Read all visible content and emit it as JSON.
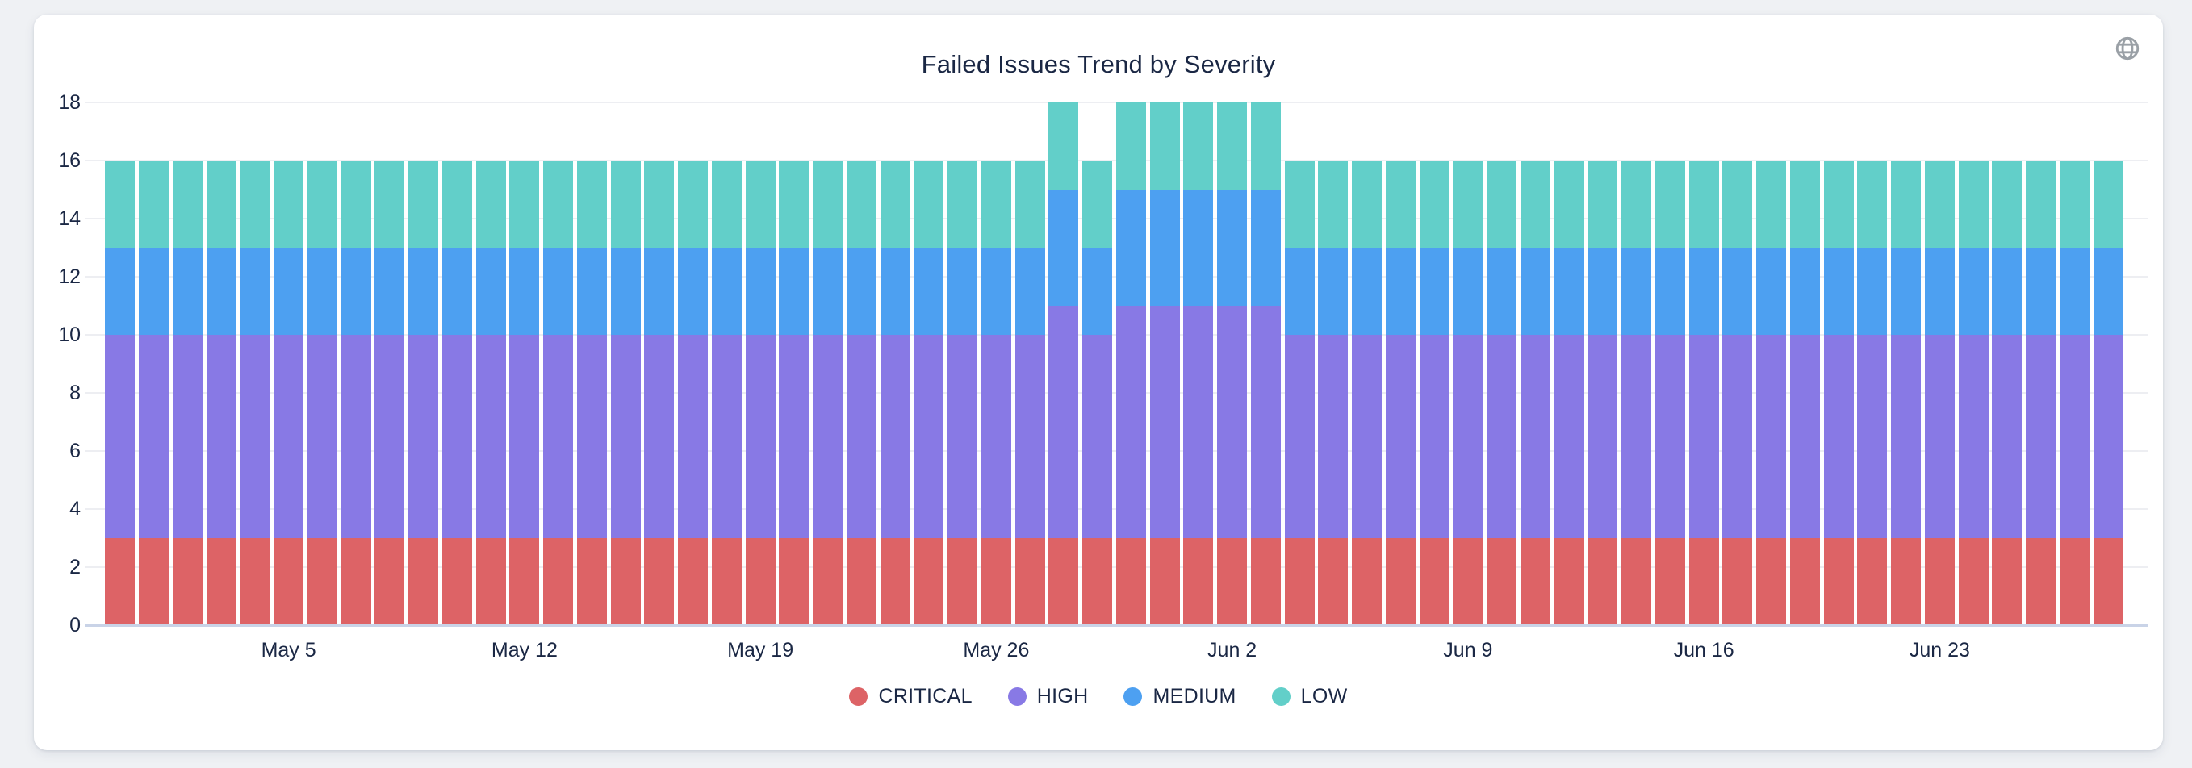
{
  "theme": {
    "page_background": "#EFF1F4",
    "card_background": "#FFFFFF",
    "text_color": "#1A2744",
    "grid_color": "#EDEEF2",
    "axis_line_color": "#C9D3E7",
    "icon_color": "#9AA0A6"
  },
  "header": {
    "globe_icon": "globe"
  },
  "chart_data": {
    "type": "bar",
    "stacked": true,
    "title": "Failed Issues Trend by Severity",
    "grid": true,
    "legend_position": "bottom",
    "ylim": [
      0,
      18
    ],
    "ytick_step": 2,
    "x": [
      "Apr 30",
      "May 1",
      "May 2",
      "May 3",
      "May 4",
      "May 5",
      "May 6",
      "May 7",
      "May 8",
      "May 9",
      "May 10",
      "May 11",
      "May 12",
      "May 13",
      "May 14",
      "May 15",
      "May 16",
      "May 17",
      "May 18",
      "May 19",
      "May 20",
      "May 21",
      "May 22",
      "May 23",
      "May 24",
      "May 25",
      "May 26",
      "May 27",
      "May 28",
      "May 29",
      "May 30",
      "May 31",
      "Jun 1",
      "Jun 2",
      "Jun 3",
      "Jun 4",
      "Jun 5",
      "Jun 6",
      "Jun 7",
      "Jun 8",
      "Jun 9",
      "Jun 10",
      "Jun 11",
      "Jun 12",
      "Jun 13",
      "Jun 14",
      "Jun 15",
      "Jun 16",
      "Jun 17",
      "Jun 18",
      "Jun 19",
      "Jun 20",
      "Jun 21",
      "Jun 22",
      "Jun 23",
      "Jun 24",
      "Jun 25",
      "Jun 26",
      "Jun 27",
      "Jun 28"
    ],
    "tick_labels": [
      "May 5",
      "May 12",
      "May 19",
      "May 26",
      "Jun 2",
      "Jun 9",
      "Jun 16",
      "Jun 23"
    ],
    "tick_indices": [
      5,
      12,
      19,
      26,
      33,
      40,
      47,
      54
    ],
    "series": [
      {
        "name": "CRITICAL",
        "color": "#DD6366",
        "values": [
          3,
          3,
          3,
          3,
          3,
          3,
          3,
          3,
          3,
          3,
          3,
          3,
          3,
          3,
          3,
          3,
          3,
          3,
          3,
          3,
          3,
          3,
          3,
          3,
          3,
          3,
          3,
          3,
          3,
          3,
          3,
          3,
          3,
          3,
          3,
          3,
          3,
          3,
          3,
          3,
          3,
          3,
          3,
          3,
          3,
          3,
          3,
          3,
          3,
          3,
          3,
          3,
          3,
          3,
          3,
          3,
          3,
          3,
          3,
          3
        ]
      },
      {
        "name": "HIGH",
        "color": "#8879E5",
        "values": [
          7,
          7,
          7,
          7,
          7,
          7,
          7,
          7,
          7,
          7,
          7,
          7,
          7,
          7,
          7,
          7,
          7,
          7,
          7,
          7,
          7,
          7,
          7,
          7,
          7,
          7,
          7,
          7,
          8,
          7,
          8,
          8,
          8,
          8,
          8,
          7,
          7,
          7,
          7,
          7,
          7,
          7,
          7,
          7,
          7,
          7,
          7,
          7,
          7,
          7,
          7,
          7,
          7,
          7,
          7,
          7,
          7,
          7,
          7,
          7
        ]
      },
      {
        "name": "MEDIUM",
        "color": "#4DA0F1",
        "values": [
          3,
          3,
          3,
          3,
          3,
          3,
          3,
          3,
          3,
          3,
          3,
          3,
          3,
          3,
          3,
          3,
          3,
          3,
          3,
          3,
          3,
          3,
          3,
          3,
          3,
          3,
          3,
          3,
          4,
          3,
          4,
          4,
          4,
          4,
          4,
          3,
          3,
          3,
          3,
          3,
          3,
          3,
          3,
          3,
          3,
          3,
          3,
          3,
          3,
          3,
          3,
          3,
          3,
          3,
          3,
          3,
          3,
          3,
          3,
          3
        ]
      },
      {
        "name": "LOW",
        "color": "#62CFC9",
        "values": [
          3,
          3,
          3,
          3,
          3,
          3,
          3,
          3,
          3,
          3,
          3,
          3,
          3,
          3,
          3,
          3,
          3,
          3,
          3,
          3,
          3,
          3,
          3,
          3,
          3,
          3,
          3,
          3,
          3,
          3,
          3,
          3,
          3,
          3,
          3,
          3,
          3,
          3,
          3,
          3,
          3,
          3,
          3,
          3,
          3,
          3,
          3,
          3,
          3,
          3,
          3,
          3,
          3,
          3,
          3,
          3,
          3,
          3,
          3,
          3
        ]
      }
    ]
  }
}
